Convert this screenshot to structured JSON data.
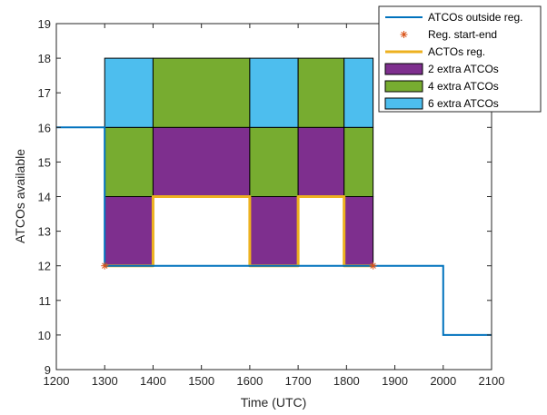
{
  "chart_data": {
    "type": "line",
    "title": "",
    "xlabel": "Time (UTC)",
    "ylabel": "ATCOs available",
    "xlim": [
      1200,
      2100
    ],
    "ylim": [
      9,
      19
    ],
    "xticks": [
      1200,
      1300,
      1400,
      1500,
      1600,
      1700,
      1800,
      1900,
      2000,
      2100
    ],
    "yticks": [
      9,
      10,
      11,
      12,
      13,
      14,
      15,
      16,
      17,
      18,
      19
    ],
    "grid": false,
    "legend_position": "top-right",
    "colors": {
      "outside": "#0072bd",
      "regstartend": "#d95319",
      "reg": "#edb120",
      "extra2": "#7e2f8e",
      "extra4": "#77ac30",
      "extra6": "#4dbeee"
    },
    "series": [
      {
        "name": "ATCOs outside reg.",
        "type": "step-line",
        "x": [
          1200,
          1300,
          1300,
          1900,
          2000,
          2000,
          2100
        ],
        "y": [
          16,
          16,
          12,
          12,
          12,
          10,
          10
        ]
      },
      {
        "name": "Reg. start-end",
        "type": "marker",
        "x": [
          1300,
          1855
        ],
        "y": [
          12,
          12
        ]
      },
      {
        "name": "ACTOs reg.",
        "type": "step-line",
        "x": [
          1300,
          1400,
          1400,
          1600,
          1600,
          1700,
          1700,
          1795,
          1795,
          1855
        ],
        "y": [
          12,
          12,
          14,
          14,
          12,
          12,
          14,
          14,
          12,
          12
        ]
      }
    ],
    "regions": [
      {
        "x": [
          1300,
          1400
        ],
        "base": 12
      },
      {
        "x": [
          1400,
          1600
        ],
        "base": 14
      },
      {
        "x": [
          1600,
          1700
        ],
        "base": 12
      },
      {
        "x": [
          1700,
          1795
        ],
        "base": 14
      },
      {
        "x": [
          1795,
          1855
        ],
        "base": 12
      }
    ],
    "bands": [
      {
        "name": "2 extra ATCOs",
        "extra": 2
      },
      {
        "name": "4 extra ATCOs",
        "extra": 4
      },
      {
        "name": "6 extra ATCOs",
        "extra": 6
      }
    ],
    "ylevel_cap": 18
  }
}
